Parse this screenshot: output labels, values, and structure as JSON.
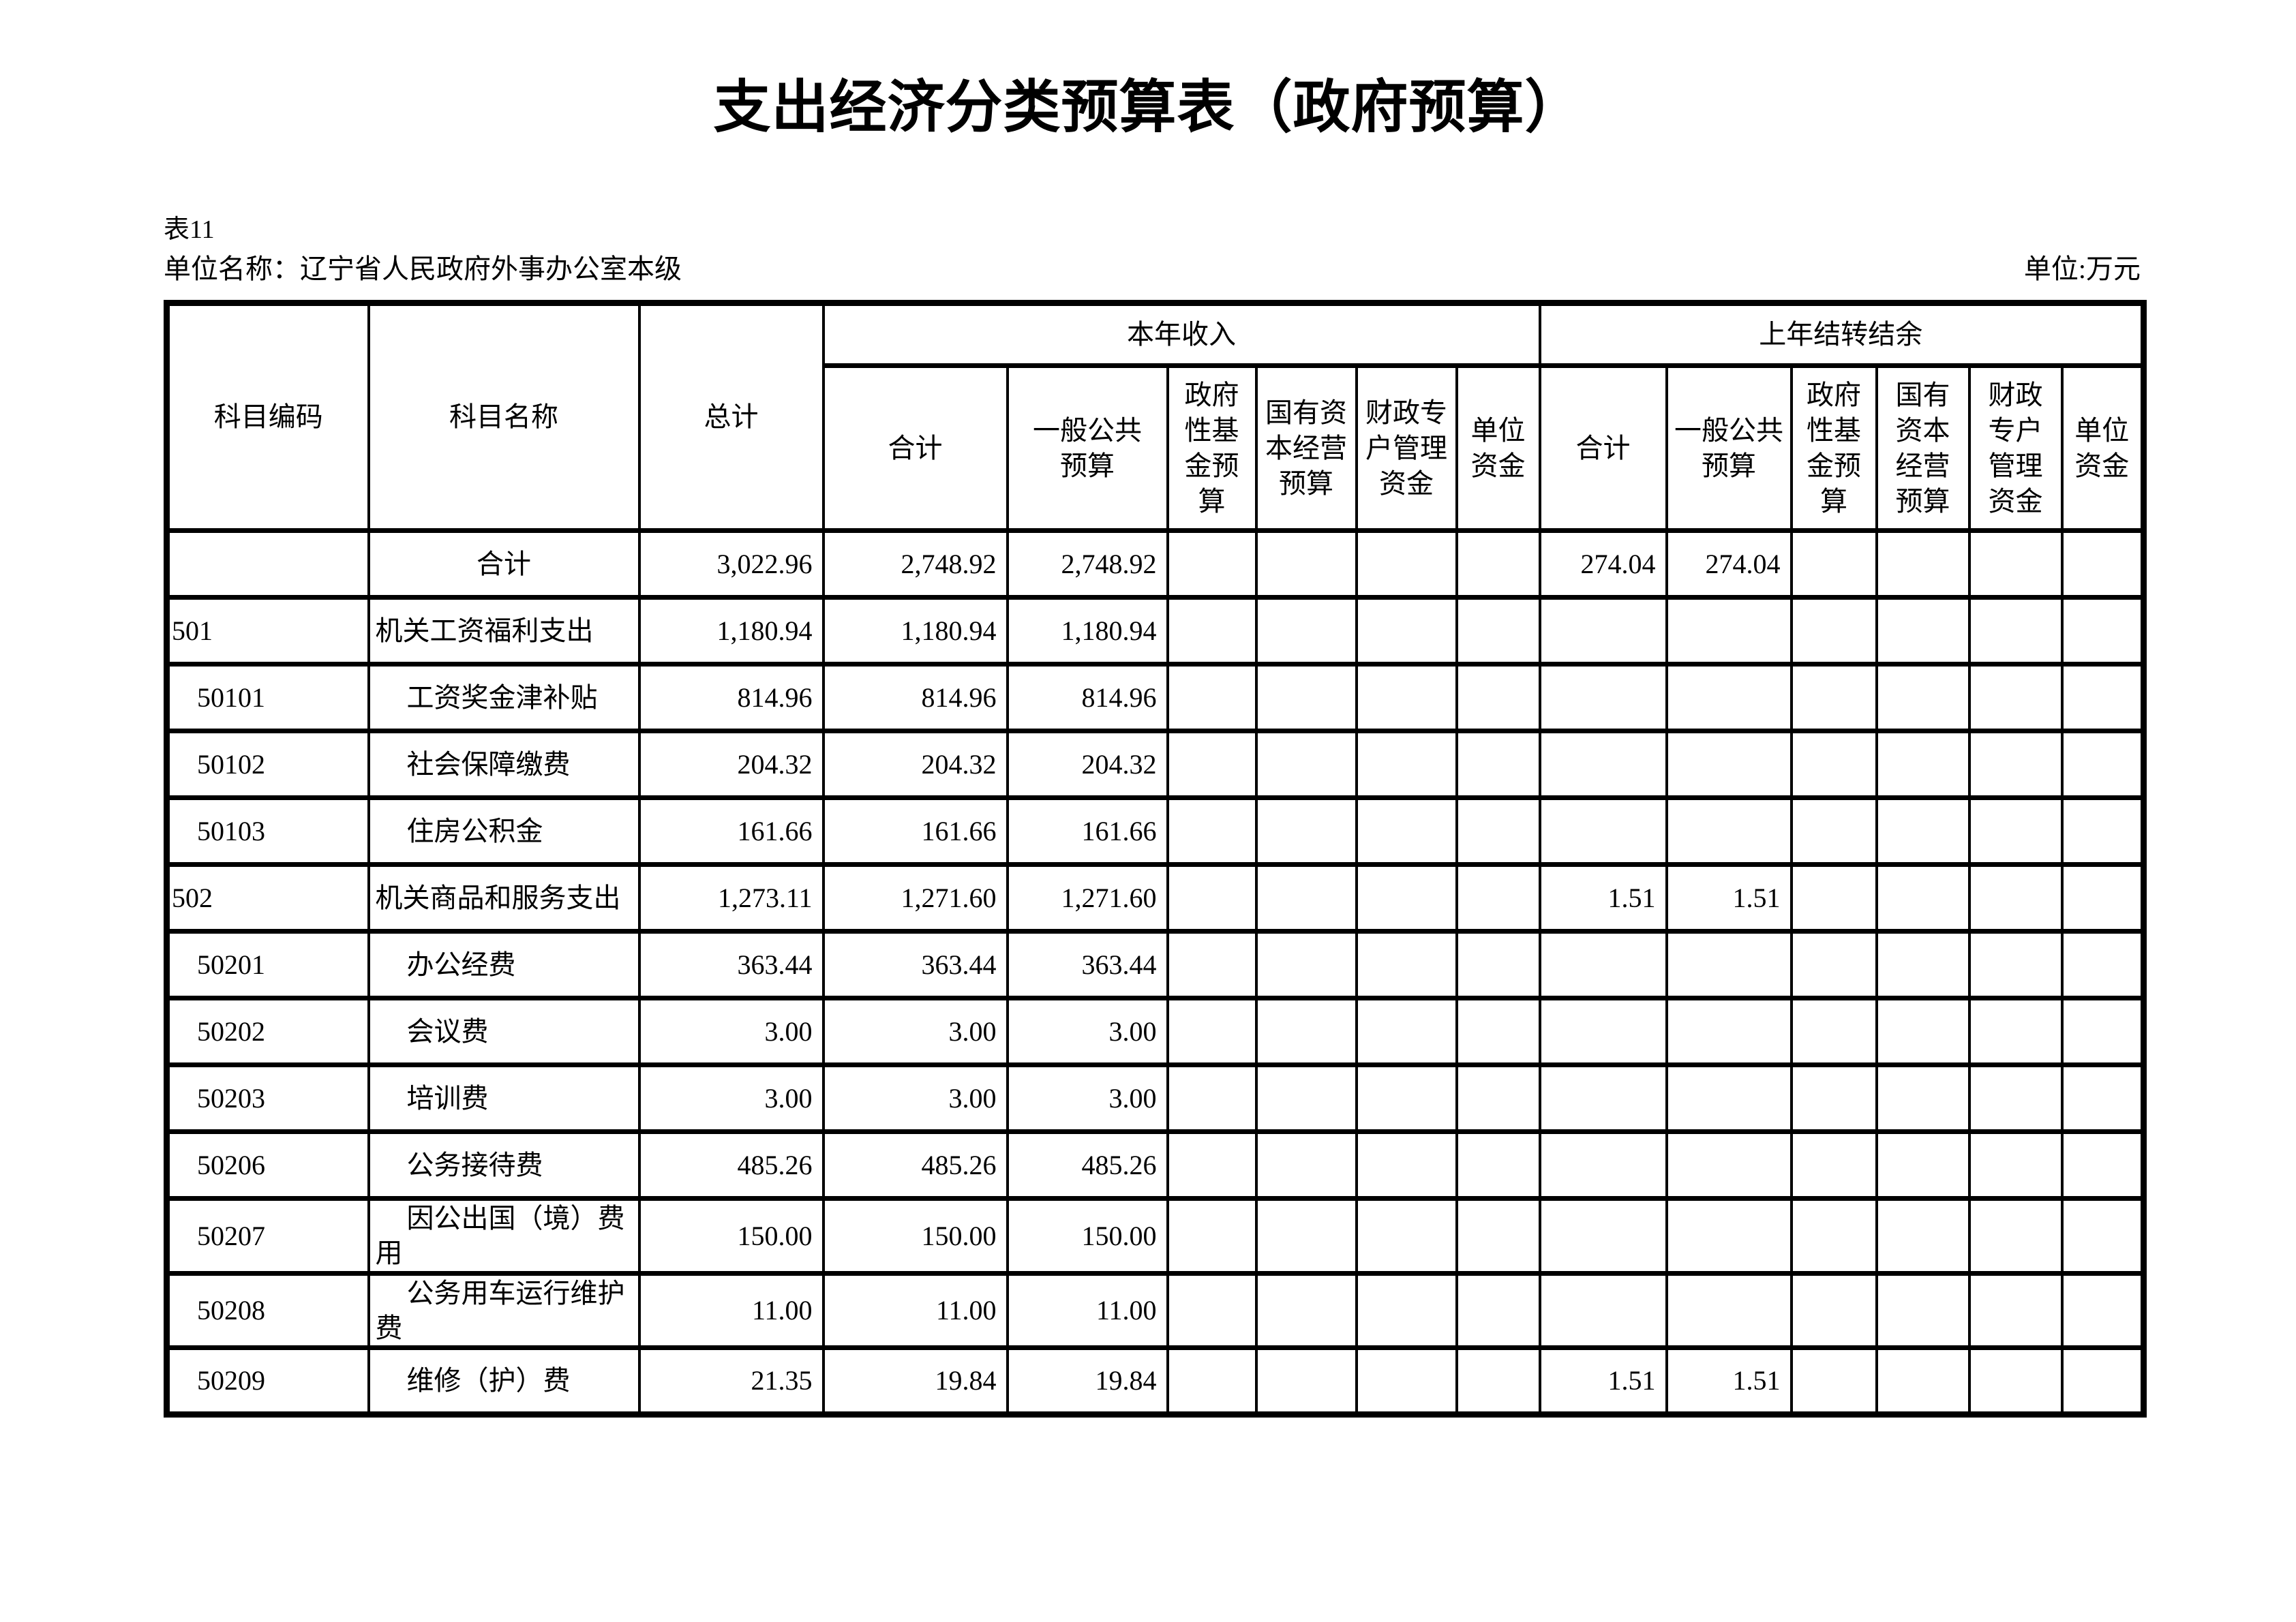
{
  "page": {
    "title": "支出经济分类预算表（政府预算）",
    "table_number": "表11",
    "unit_name": "单位名称：辽宁省人民政府外事办公室本级",
    "unit_label": "单位:万元"
  },
  "table": {
    "headers": {
      "code": "科目编码",
      "name": "科目名称",
      "grand_total": "总计",
      "current_year_group": "本年收入",
      "carryover_group": "上年结转结余",
      "current_year_cols": [
        "合计",
        "一般公共\n预算",
        "政府\n性基\n金预\n算",
        "国有资\n本经营\n预算",
        "财政专\n户管理\n资金",
        "单位\n资金"
      ],
      "carryover_cols": [
        "合计",
        "一般公共\n预算",
        "政府\n性基\n金预\n算",
        "国有\n资本\n经营\n预算",
        "财政\n专户\n管理\n资金",
        "单位\n资金"
      ]
    },
    "rows": [
      {
        "code": "",
        "name": "合计",
        "level": "total",
        "values": [
          "3,022.96",
          "2,748.92",
          "2,748.92",
          "",
          "",
          "",
          "",
          "274.04",
          "274.04",
          "",
          "",
          "",
          ""
        ]
      },
      {
        "code": "501",
        "name": "机关工资福利支出",
        "level": "parent",
        "values": [
          "1,180.94",
          "1,180.94",
          "1,180.94",
          "",
          "",
          "",
          "",
          "",
          "",
          "",
          "",
          "",
          ""
        ]
      },
      {
        "code": "50101",
        "name": "工资奖金津补贴",
        "level": "child",
        "values": [
          "814.96",
          "814.96",
          "814.96",
          "",
          "",
          "",
          "",
          "",
          "",
          "",
          "",
          "",
          ""
        ]
      },
      {
        "code": "50102",
        "name": "社会保障缴费",
        "level": "child",
        "values": [
          "204.32",
          "204.32",
          "204.32",
          "",
          "",
          "",
          "",
          "",
          "",
          "",
          "",
          "",
          ""
        ]
      },
      {
        "code": "50103",
        "name": "住房公积金",
        "level": "child",
        "values": [
          "161.66",
          "161.66",
          "161.66",
          "",
          "",
          "",
          "",
          "",
          "",
          "",
          "",
          "",
          ""
        ]
      },
      {
        "code": "502",
        "name": "机关商品和服务支出",
        "level": "parent",
        "values": [
          "1,273.11",
          "1,271.60",
          "1,271.60",
          "",
          "",
          "",
          "",
          "1.51",
          "1.51",
          "",
          "",
          "",
          ""
        ]
      },
      {
        "code": "50201",
        "name": "办公经费",
        "level": "child",
        "values": [
          "363.44",
          "363.44",
          "363.44",
          "",
          "",
          "",
          "",
          "",
          "",
          "",
          "",
          "",
          ""
        ]
      },
      {
        "code": "50202",
        "name": "会议费",
        "level": "child",
        "values": [
          "3.00",
          "3.00",
          "3.00",
          "",
          "",
          "",
          "",
          "",
          "",
          "",
          "",
          "",
          ""
        ]
      },
      {
        "code": "50203",
        "name": "培训费",
        "level": "child",
        "values": [
          "3.00",
          "3.00",
          "3.00",
          "",
          "",
          "",
          "",
          "",
          "",
          "",
          "",
          "",
          ""
        ]
      },
      {
        "code": "50206",
        "name": "公务接待费",
        "level": "child",
        "values": [
          "485.26",
          "485.26",
          "485.26",
          "",
          "",
          "",
          "",
          "",
          "",
          "",
          "",
          "",
          ""
        ]
      },
      {
        "code": "50207",
        "name": "因公出国（境）费用",
        "level": "child",
        "values": [
          "150.00",
          "150.00",
          "150.00",
          "",
          "",
          "",
          "",
          "",
          "",
          "",
          "",
          "",
          ""
        ]
      },
      {
        "code": "50208",
        "name": "公务用车运行维护费",
        "level": "child",
        "values": [
          "11.00",
          "11.00",
          "11.00",
          "",
          "",
          "",
          "",
          "",
          "",
          "",
          "",
          "",
          ""
        ]
      },
      {
        "code": "50209",
        "name": "维修（护）费",
        "level": "child",
        "values": [
          "21.35",
          "19.84",
          "19.84",
          "",
          "",
          "",
          "",
          "1.51",
          "1.51",
          "",
          "",
          "",
          ""
        ]
      }
    ]
  }
}
